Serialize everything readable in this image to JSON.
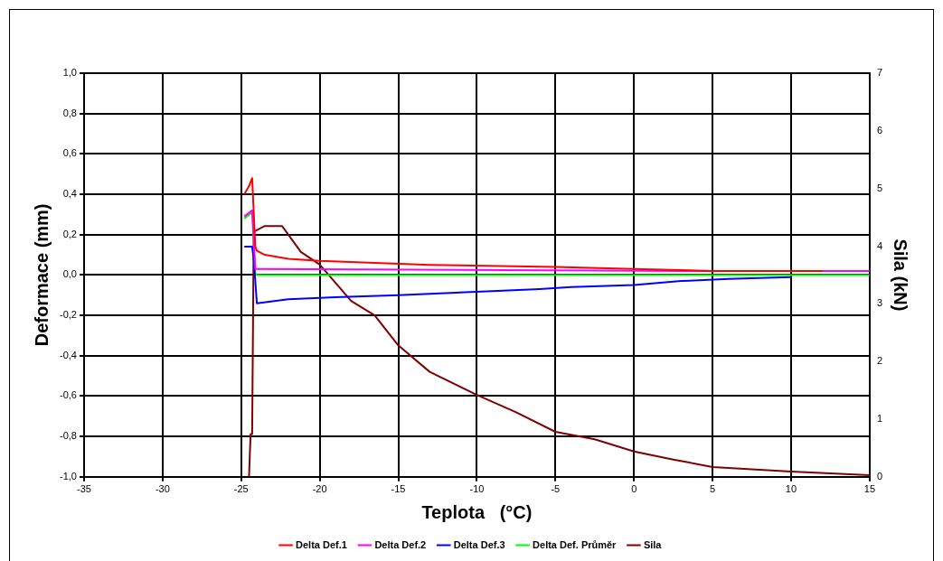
{
  "chart_data": {
    "type": "line",
    "xlabel": "Teplota   (°C)",
    "ylabel": "Deformace (mm)",
    "y2label": "Sila (kN)",
    "xlim": [
      -35,
      15
    ],
    "xticks": [
      -35,
      -30,
      -25,
      -20,
      -15,
      -10,
      -5,
      0,
      5,
      10,
      15
    ],
    "ylim": [
      -1.0,
      1.0
    ],
    "yticks": [
      {
        "value": -1.0,
        "label": "-1,0"
      },
      {
        "value": -0.8,
        "label": "-0,8"
      },
      {
        "value": -0.6,
        "label": "-0,6"
      },
      {
        "value": -0.4,
        "label": "-0,4"
      },
      {
        "value": -0.2,
        "label": "-0,2"
      },
      {
        "value": 0,
        "label": "0,0"
      },
      {
        "value": 0.2,
        "label": "0,2"
      },
      {
        "value": 0.4,
        "label": "0,4"
      },
      {
        "value": 0.6,
        "label": "0,6"
      },
      {
        "value": 0.8,
        "label": "0,8"
      },
      {
        "value": 1.0,
        "label": "1,0"
      }
    ],
    "y2lim": [
      0,
      7
    ],
    "y2ticks": [
      0,
      1,
      2,
      3,
      4,
      5,
      6,
      7
    ],
    "grid": true,
    "legend": "bottom",
    "marker": "none",
    "line_style": "solid",
    "series": [
      {
        "name": "Delta Def.1",
        "color": "#ff0000",
        "x": [
          -24.8,
          -24.5,
          -24.3,
          -24.1,
          -24.0,
          -23.5,
          -22.0,
          -20.0,
          -13.0,
          -5.0,
          0.0,
          5.0,
          12.0
        ],
        "values": [
          0.4,
          0.44,
          0.48,
          0.14,
          0.12,
          0.1,
          0.08,
          0.07,
          0.05,
          0.04,
          0.03,
          0.02,
          0.02
        ]
      },
      {
        "name": "Delta Def.2",
        "color": "#ff00ff",
        "x": [
          -24.8,
          -24.3,
          -24.1,
          -24.0,
          3.0,
          15.0
        ],
        "values": [
          0.29,
          0.32,
          0.03,
          0.03,
          0.02,
          0.02
        ]
      },
      {
        "name": "Delta Def.3",
        "color": "#0000ff",
        "x": [
          -24.8,
          -24.3,
          -24.2,
          -24.0,
          -22.0,
          -19.0,
          -15.0,
          -12.0,
          -9.0,
          -6.0,
          -4.0,
          0.0,
          3.0,
          6.0,
          10.0
        ],
        "values": [
          0.14,
          0.14,
          0.08,
          -0.14,
          -0.12,
          -0.11,
          -0.1,
          -0.09,
          -0.08,
          -0.07,
          -0.06,
          -0.05,
          -0.03,
          -0.02,
          -0.01
        ]
      },
      {
        "name": "Delta Def. Průměr",
        "color": "#00ff00",
        "x": [
          -24.8,
          -24.3,
          -24.1,
          -24.0,
          15.0
        ],
        "values": [
          0.28,
          0.31,
          0.01,
          0.0,
          0.0
        ]
      },
      {
        "name": "Sila",
        "color": "#800000",
        "axis": "y2",
        "x": [
          -24.5,
          -24.4,
          -24.3,
          -24.2,
          -23.5,
          -22.4,
          -21.2,
          -20.0,
          -18.0,
          -16.5,
          -15.0,
          -13.0,
          -10.0,
          -7.5,
          -5.0,
          -2.5,
          0.0,
          2.5,
          5.0,
          7.5,
          10.0,
          15.0
        ],
        "values": [
          0.0,
          0.74,
          0.74,
          4.25,
          4.35,
          4.35,
          3.9,
          3.68,
          3.05,
          2.8,
          2.28,
          1.82,
          1.42,
          1.12,
          0.78,
          0.65,
          0.44,
          0.3,
          0.17,
          0.13,
          0.09,
          0.03
        ]
      }
    ]
  }
}
